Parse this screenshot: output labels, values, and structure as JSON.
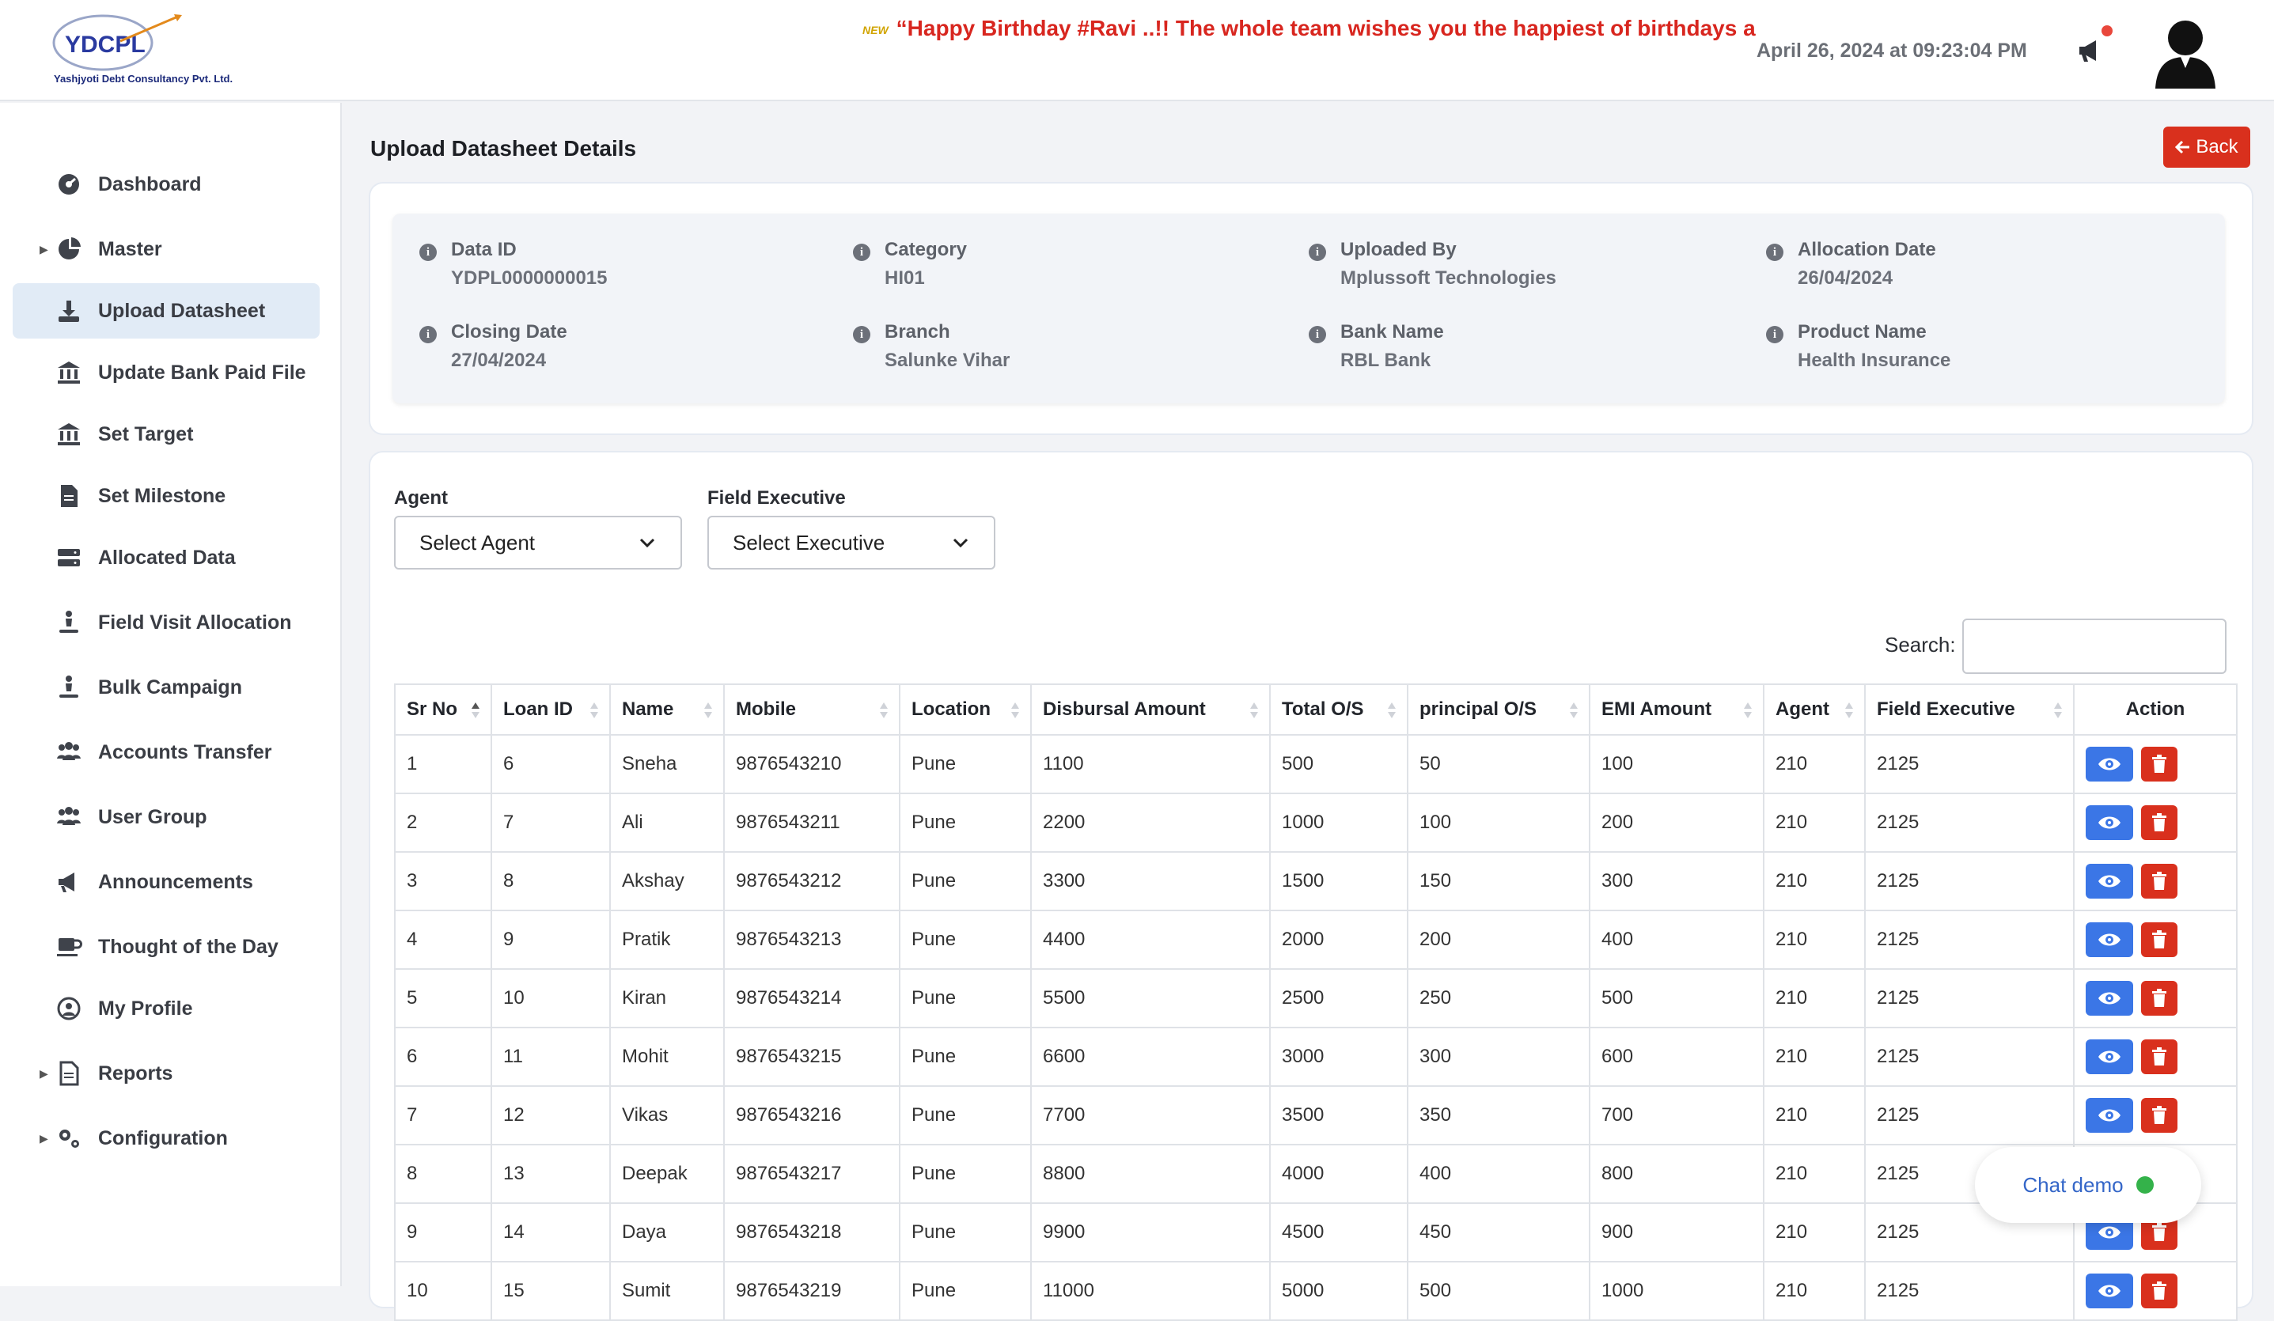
{
  "header": {
    "logo_text": "YDCPL",
    "company_name": "Yashjyoti Debt Consultancy Pvt. Ltd.",
    "ticker_badge": "NEW",
    "ticker_text": "“Happy Birthday #Ravi ..!! The whole team wishes you the happiest of birthdays and a",
    "datetime": "April 26, 2024 at 09:23:04 PM"
  },
  "sidebar": {
    "items": [
      {
        "label": "Dashboard",
        "icon": "dashboard-icon"
      },
      {
        "label": "Master",
        "icon": "pie-chart-icon"
      },
      {
        "label": "Upload Datasheet",
        "icon": "download-icon"
      },
      {
        "label": "Update Bank Paid File",
        "icon": "bank-icon"
      },
      {
        "label": "Set Target",
        "icon": "bank-icon"
      },
      {
        "label": "Set Milestone",
        "icon": "document-icon"
      },
      {
        "label": "Allocated Data",
        "icon": "server-icon"
      },
      {
        "label": "Field Visit Allocation",
        "icon": "person-dolly-icon"
      },
      {
        "label": "Bulk Campaign",
        "icon": "person-dolly-icon"
      },
      {
        "label": "Accounts Transfer",
        "icon": "users-icon"
      },
      {
        "label": "User Group",
        "icon": "users-icon"
      },
      {
        "label": "Announcements",
        "icon": "megaphone-icon"
      },
      {
        "label": "Thought of the Day",
        "icon": "mug-icon"
      },
      {
        "label": "My Profile",
        "icon": "user-circle-icon"
      },
      {
        "label": "Reports",
        "icon": "report-icon"
      },
      {
        "label": "Configuration",
        "icon": "gears-icon"
      }
    ]
  },
  "page": {
    "title": "Upload Datasheet Details",
    "back_label": "Back"
  },
  "details": {
    "data_id": {
      "label": "Data ID",
      "value": "YDPL0000000015"
    },
    "category": {
      "label": "Category",
      "value": "HI01"
    },
    "uploaded_by": {
      "label": "Uploaded By",
      "value": "Mplussoft Technologies"
    },
    "allocation_date": {
      "label": "Allocation Date",
      "value": "26/04/2024"
    },
    "closing_date": {
      "label": "Closing Date",
      "value": "27/04/2024"
    },
    "branch": {
      "label": "Branch",
      "value": "Salunke Vihar"
    },
    "bank_name": {
      "label": "Bank Name",
      "value": "RBL Bank"
    },
    "product_name": {
      "label": "Product Name",
      "value": "Health Insurance"
    }
  },
  "filters": {
    "agent_label": "Agent",
    "agent_value": "Select Agent",
    "executive_label": "Field Executive",
    "executive_value": "Select Executive",
    "search_label": "Search:",
    "search_value": ""
  },
  "table": {
    "columns": [
      "Sr No",
      "Loan ID",
      "Name",
      "Mobile",
      "Location",
      "Disbursal Amount",
      "Total O/S",
      "principal O/S",
      "EMI Amount",
      "Agent",
      "Field Executive",
      "Action"
    ],
    "rows": [
      [
        "1",
        "6",
        "Sneha",
        "9876543210",
        "Pune",
        "1100",
        "500",
        "50",
        "100",
        "210",
        "2125"
      ],
      [
        "2",
        "7",
        "Ali",
        "9876543211",
        "Pune",
        "2200",
        "1000",
        "100",
        "200",
        "210",
        "2125"
      ],
      [
        "3",
        "8",
        "Akshay",
        "9876543212",
        "Pune",
        "3300",
        "1500",
        "150",
        "300",
        "210",
        "2125"
      ],
      [
        "4",
        "9",
        "Pratik",
        "9876543213",
        "Pune",
        "4400",
        "2000",
        "200",
        "400",
        "210",
        "2125"
      ],
      [
        "5",
        "10",
        "Kiran",
        "9876543214",
        "Pune",
        "5500",
        "2500",
        "250",
        "500",
        "210",
        "2125"
      ],
      [
        "6",
        "11",
        "Mohit",
        "9876543215",
        "Pune",
        "6600",
        "3000",
        "300",
        "600",
        "210",
        "2125"
      ],
      [
        "7",
        "12",
        "Vikas",
        "9876543216",
        "Pune",
        "7700",
        "3500",
        "350",
        "700",
        "210",
        "2125"
      ],
      [
        "8",
        "13",
        "Deepak",
        "9876543217",
        "Pune",
        "8800",
        "4000",
        "400",
        "800",
        "210",
        "2125"
      ],
      [
        "9",
        "14",
        "Daya",
        "9876543218",
        "Pune",
        "9900",
        "4500",
        "450",
        "900",
        "210",
        "2125"
      ],
      [
        "10",
        "15",
        "Sumit",
        "9876543219",
        "Pune",
        "11000",
        "5000",
        "500",
        "1000",
        "210",
        "2125"
      ]
    ]
  },
  "chat": {
    "label": "Chat demo"
  },
  "colors": {
    "accent": "#3b76e6",
    "danger": "#d9301d",
    "ticker": "#d8261f",
    "active_nav": "#e1ebf6"
  }
}
